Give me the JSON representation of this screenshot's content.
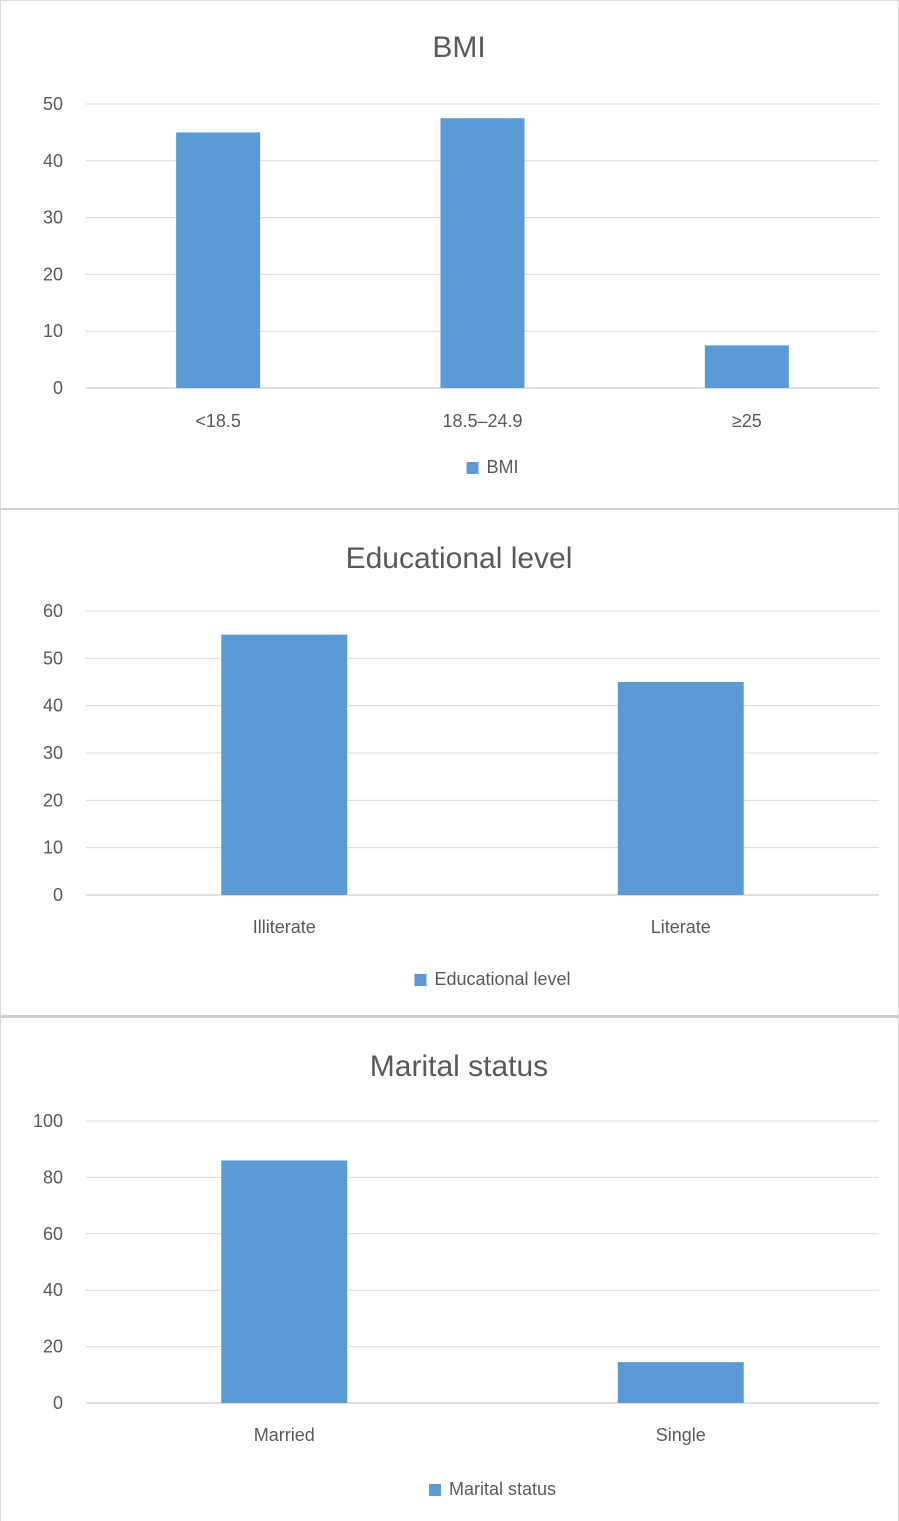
{
  "chart_data": [
    {
      "type": "bar",
      "title": "BMI",
      "categories": [
        "<18.5",
        "18.5–24.9",
        "≥25"
      ],
      "values": [
        45,
        47.5,
        7.5
      ],
      "ylim": [
        0,
        50
      ],
      "yticks": [
        "0",
        "10",
        "20",
        "30",
        "40",
        "50"
      ],
      "ytick_values": [
        0,
        10,
        20,
        30,
        40,
        50
      ],
      "grid": true,
      "legend": "bottom",
      "series": [
        {
          "name": "BMI",
          "color": "#5b9bd5"
        }
      ]
    },
    {
      "type": "bar",
      "title": "Educational level",
      "categories": [
        "Illiterate",
        "Literate"
      ],
      "values": [
        55,
        45
      ],
      "ylim": [
        0,
        60
      ],
      "yticks": [
        "0",
        "10",
        "20",
        "30",
        "40",
        "50",
        "60"
      ],
      "ytick_values": [
        0,
        10,
        20,
        30,
        40,
        50,
        60
      ],
      "grid": true,
      "legend": "bottom",
      "series": [
        {
          "name": "Educational level",
          "color": "#5b9bd5"
        }
      ]
    },
    {
      "type": "bar",
      "title": "Marital status",
      "categories": [
        "Married",
        "Single"
      ],
      "values": [
        86,
        14.5
      ],
      "ylim": [
        0,
        100
      ],
      "yticks": [
        "0",
        "20",
        "40",
        "60",
        "80",
        "100"
      ],
      "ytick_values": [
        0,
        20,
        40,
        60,
        80,
        100
      ],
      "grid": true,
      "legend": "bottom",
      "series": [
        {
          "name": "Marital status",
          "color": "#5b9bd5"
        }
      ]
    }
  ]
}
